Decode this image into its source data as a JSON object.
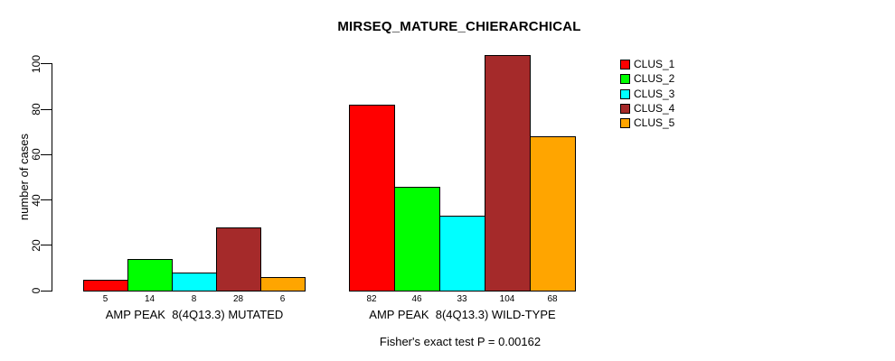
{
  "chart_data": {
    "type": "bar",
    "title": "MIRSEQ_MATURE_CHIERARCHICAL",
    "ylabel": "number of cases",
    "xlabel": "",
    "ylim": [
      0,
      100
    ],
    "yticks": [
      0,
      20,
      40,
      60,
      80,
      100
    ],
    "grid": false,
    "bar_value_labels": true,
    "legend_position": "top-right",
    "series": [
      {
        "name": "CLUS_1",
        "color": "#FF0000"
      },
      {
        "name": "CLUS_2",
        "color": "#00FF00"
      },
      {
        "name": "CLUS_3",
        "color": "#00FFFF"
      },
      {
        "name": "CLUS_4",
        "color": "#A52A2A"
      },
      {
        "name": "CLUS_5",
        "color": "#FFA500"
      }
    ],
    "groups": [
      {
        "label": "AMP PEAK  8(4Q13.3) MUTATED",
        "values": [
          5,
          14,
          8,
          28,
          6
        ]
      },
      {
        "label": "AMP PEAK  8(4Q13.3) WILD-TYPE",
        "values": [
          82,
          46,
          33,
          104,
          68
        ]
      }
    ],
    "note": "Fisher's exact test P = 0.00162",
    "colors": {
      "axis": "#000000",
      "text": "#000000",
      "background": "#FFFFFF",
      "bar_border": "#000000"
    }
  }
}
